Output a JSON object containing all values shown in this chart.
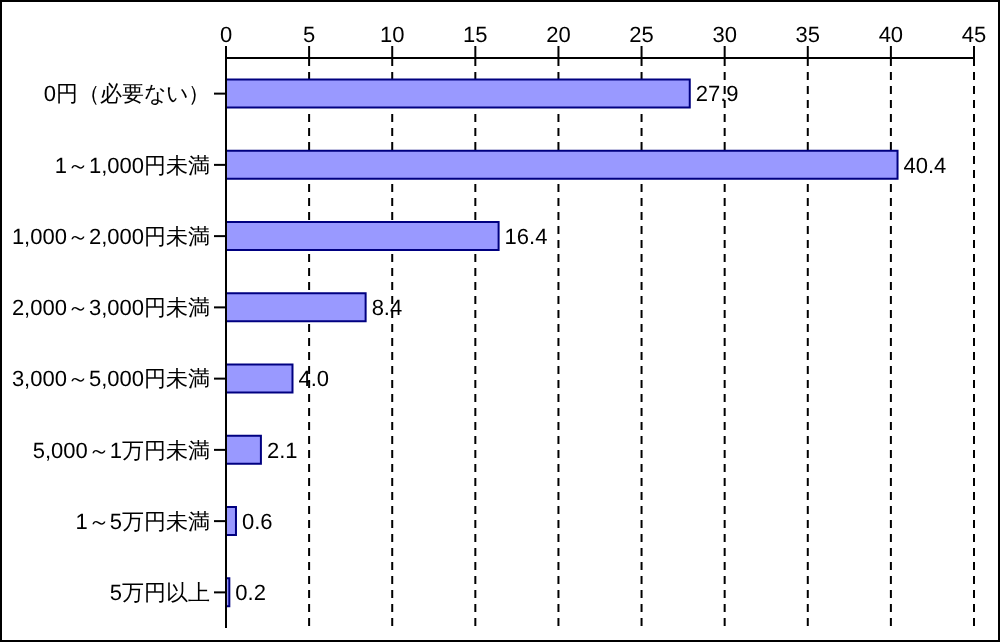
{
  "chart_data": {
    "type": "bar",
    "orientation": "horizontal",
    "categories": [
      "0円（必要ない）",
      "1～1,000円未満",
      "1,000～2,000円未満",
      "2,000～3,000円未満",
      "3,000～5,000円未満",
      "5,000～1万円未満",
      "1～5万円未満",
      "5万円以上"
    ],
    "values": [
      27.9,
      40.4,
      16.4,
      8.4,
      4.0,
      2.1,
      0.6,
      0.2
    ],
    "value_labels": [
      "27.9",
      "40.4",
      "16.4",
      "8.4",
      "4.0",
      "2.1",
      "0.6",
      "0.2"
    ],
    "color": "#9999ff",
    "xlim": [
      0,
      45
    ],
    "xticks": [
      0,
      5,
      10,
      15,
      20,
      25,
      30,
      35,
      40,
      45
    ],
    "grid": "x"
  }
}
